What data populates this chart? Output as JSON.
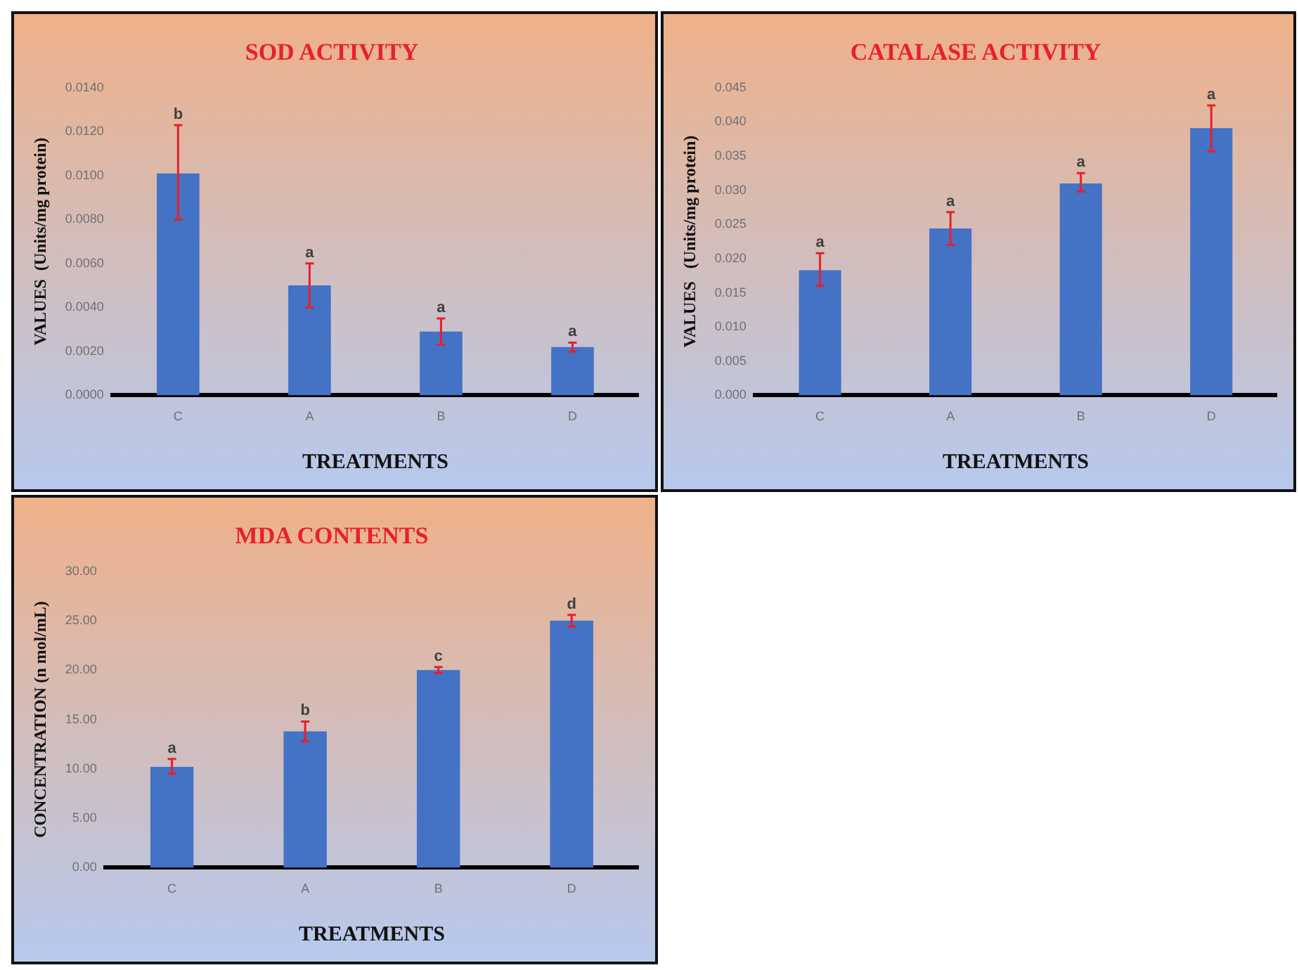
{
  "chart_data": [
    {
      "type": "bar",
      "title": "SOD ACTIVITY",
      "xlabel": "TREATMENTS",
      "ylabel": "VALUES  (Units/mg protein)",
      "categories": [
        "C",
        "A",
        "B",
        "D"
      ],
      "values": [
        0.0101,
        0.005,
        0.0029,
        0.0022
      ],
      "color": "#4472c4",
      "errors": [
        [
          0.008,
          0.0123
        ],
        [
          0.004,
          0.006
        ],
        [
          0.0023,
          0.0035
        ],
        [
          0.002,
          0.0024
        ]
      ],
      "ylim": [
        0,
        0.014
      ],
      "yticks": [
        {
          "value": 0,
          "label": "0.0000"
        },
        {
          "value": 0.002,
          "label": "0.0020"
        },
        {
          "value": 0.004,
          "label": "0.0040"
        },
        {
          "value": 0.006,
          "label": "0.0060"
        },
        {
          "value": 0.008,
          "label": "0.0080"
        },
        {
          "value": 0.01,
          "label": "0.0100"
        },
        {
          "value": 0.012,
          "label": "0.0120"
        },
        {
          "value": 0.014,
          "label": "0.0140"
        }
      ],
      "annotations": [
        "b",
        "a",
        "a",
        "a"
      ],
      "grid": false,
      "legend": false
    },
    {
      "type": "bar",
      "title": "CATALASE ACTIVITY",
      "xlabel": "TREATMENTS",
      "ylabel": "VALUES   (Units/mg protein)",
      "categories": [
        "C",
        "A",
        "B",
        "D"
      ],
      "values": [
        0.0183,
        0.0244,
        0.031,
        0.0391
      ],
      "color": "#4472c4",
      "errors": [
        [
          0.016,
          0.0208
        ],
        [
          0.022,
          0.0268
        ],
        [
          0.0298,
          0.0325
        ],
        [
          0.0357,
          0.0424
        ]
      ],
      "ylim": [
        0,
        0.045
      ],
      "yticks": [
        {
          "value": 0,
          "label": "0.000"
        },
        {
          "value": 0.005,
          "label": "0.005"
        },
        {
          "value": 0.01,
          "label": "0.010"
        },
        {
          "value": 0.015,
          "label": "0.015"
        },
        {
          "value": 0.02,
          "label": "0.020"
        },
        {
          "value": 0.025,
          "label": "0.025"
        },
        {
          "value": 0.03,
          "label": "0.030"
        },
        {
          "value": 0.035,
          "label": "0.035"
        },
        {
          "value": 0.04,
          "label": "0.040"
        },
        {
          "value": 0.045,
          "label": "0.045"
        }
      ],
      "annotations": [
        "a",
        "a",
        "a",
        "a"
      ],
      "grid": false,
      "legend": false
    },
    {
      "type": "bar",
      "title": "MDA CONTENTS",
      "xlabel": "TREATMENTS",
      "ylabel": "CONCENTRATION (n mol/mL)",
      "categories": [
        "C",
        "A",
        "B",
        "D"
      ],
      "values": [
        10.2,
        13.8,
        20.0,
        25.0
      ],
      "color": "#4472c4",
      "errors": [
        [
          9.5,
          11.0
        ],
        [
          12.8,
          14.8
        ],
        [
          19.7,
          20.3
        ],
        [
          24.4,
          25.6
        ]
      ],
      "ylim": [
        0,
        30
      ],
      "yticks": [
        {
          "value": 0,
          "label": "0.00"
        },
        {
          "value": 5,
          "label": "5.00"
        },
        {
          "value": 10,
          "label": "10.00"
        },
        {
          "value": 15,
          "label": "15.00"
        },
        {
          "value": 20,
          "label": "20.00"
        },
        {
          "value": 25,
          "label": "25.00"
        },
        {
          "value": 30,
          "label": "30.00"
        }
      ],
      "annotations": [
        "a",
        "b",
        "c",
        "d"
      ],
      "grid": false,
      "legend": false
    }
  ]
}
